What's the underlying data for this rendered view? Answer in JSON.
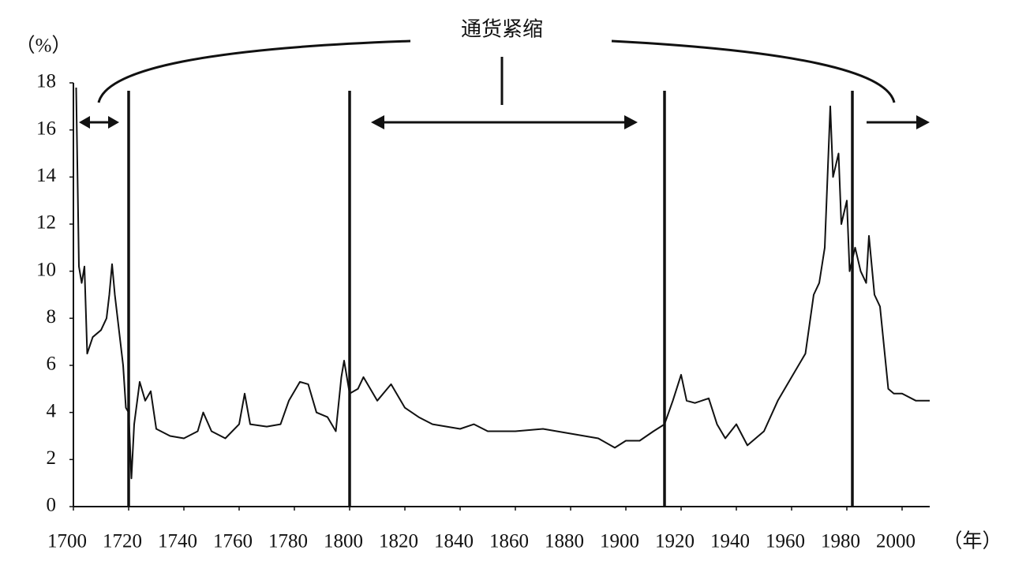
{
  "chart_data": {
    "type": "line",
    "annotation": "通货紧缩",
    "y_unit": "（%）",
    "x_unit": "（年）",
    "xlim": [
      1700,
      2010
    ],
    "xticks": [
      1700,
      1720,
      1740,
      1760,
      1780,
      1800,
      1820,
      1840,
      1860,
      1880,
      1900,
      1920,
      1940,
      1960,
      1980,
      2000
    ],
    "ylim": [
      0,
      18
    ],
    "yticks": [
      0,
      2,
      4,
      6,
      8,
      10,
      12,
      14,
      16,
      18
    ],
    "reference_lines": [
      1720,
      1800,
      1914,
      1982
    ],
    "color": "#111111",
    "x": [
      1701,
      1702,
      1703,
      1704,
      1705,
      1707,
      1710,
      1712,
      1713,
      1714,
      1715,
      1717,
      1718,
      1719,
      1720,
      1721,
      1722,
      1724,
      1726,
      1728,
      1730,
      1735,
      1740,
      1745,
      1747,
      1750,
      1755,
      1760,
      1762,
      1764,
      1770,
      1775,
      1778,
      1782,
      1785,
      1788,
      1792,
      1795,
      1797,
      1798,
      1800,
      1803,
      1805,
      1810,
      1815,
      1820,
      1825,
      1830,
      1840,
      1845,
      1850,
      1860,
      1870,
      1880,
      1890,
      1896,
      1900,
      1905,
      1910,
      1914,
      1917,
      1920,
      1922,
      1925,
      1930,
      1933,
      1936,
      1940,
      1944,
      1950,
      1955,
      1960,
      1965,
      1968,
      1970,
      1972,
      1974,
      1975,
      1977,
      1978,
      1980,
      1981,
      1983,
      1985,
      1987,
      1988,
      1990,
      1992,
      1995,
      1997,
      2000,
      2005,
      2010
    ],
    "values": [
      17.8,
      10.2,
      9.5,
      10.2,
      6.5,
      7.2,
      7.5,
      8,
      9,
      10.3,
      9,
      7,
      6,
      4.2,
      4,
      1.2,
      3.5,
      5.3,
      4.5,
      4.9,
      3.3,
      3,
      2.9,
      3.2,
      4,
      3.2,
      2.9,
      3.5,
      4.8,
      3.5,
      3.4,
      3.5,
      4.5,
      5.3,
      5.2,
      4,
      3.8,
      3.2,
      5.5,
      6.2,
      4.8,
      5,
      5.5,
      4.5,
      5.2,
      4.2,
      3.8,
      3.5,
      3.3,
      3.5,
      3.2,
      3.2,
      3.3,
      3.1,
      2.9,
      2.5,
      2.8,
      2.8,
      3.2,
      3.5,
      4.5,
      5.6,
      4.5,
      4.4,
      4.6,
      3.5,
      2.9,
      3.5,
      2.6,
      3.2,
      4.5,
      5.5,
      6.5,
      9,
      9.5,
      11,
      17,
      14,
      15,
      12,
      13,
      10,
      11,
      10,
      9.5,
      11.5,
      9,
      8.5,
      5,
      4.8,
      4.8,
      4.5,
      4.5
    ]
  }
}
